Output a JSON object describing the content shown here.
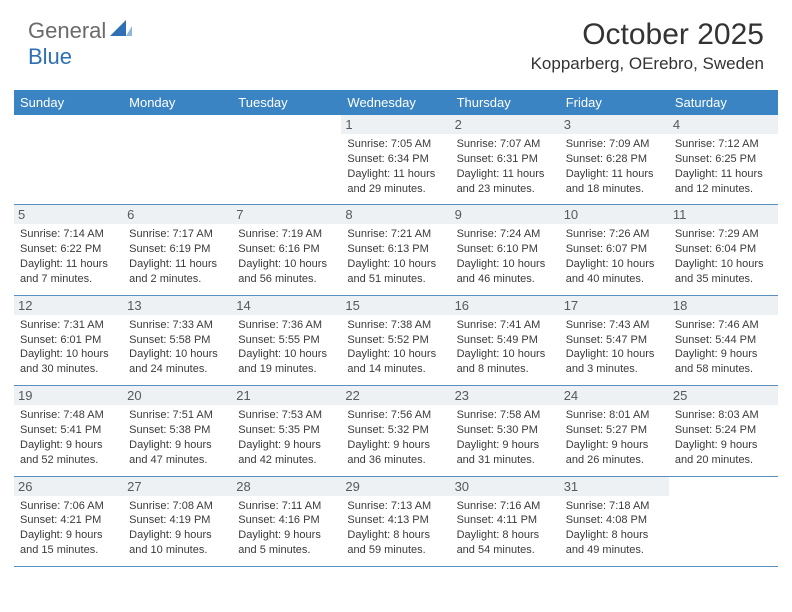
{
  "logo": {
    "part1": "General",
    "part2": "Blue"
  },
  "title": {
    "month": "October 2025",
    "location": "Kopparberg, OErebro, Sweden"
  },
  "colors": {
    "header_bg": "#3b84c4",
    "header_text": "#ffffff",
    "daynum_bg": "#eef1f3",
    "daynum_text": "#555a5e",
    "cell_text": "#3a3a3a",
    "rule": "#5a8fbf",
    "logo_gray": "#6a6a6a",
    "logo_blue": "#2f6fb3"
  },
  "day_labels": [
    "Sunday",
    "Monday",
    "Tuesday",
    "Wednesday",
    "Thursday",
    "Friday",
    "Saturday"
  ],
  "weeks": [
    [
      {
        "blank": true
      },
      {
        "blank": true
      },
      {
        "blank": true
      },
      {
        "n": "1",
        "sr": "7:05 AM",
        "ss": "6:34 PM",
        "dl": "11 hours and 29 minutes."
      },
      {
        "n": "2",
        "sr": "7:07 AM",
        "ss": "6:31 PM",
        "dl": "11 hours and 23 minutes."
      },
      {
        "n": "3",
        "sr": "7:09 AM",
        "ss": "6:28 PM",
        "dl": "11 hours and 18 minutes."
      },
      {
        "n": "4",
        "sr": "7:12 AM",
        "ss": "6:25 PM",
        "dl": "11 hours and 12 minutes."
      }
    ],
    [
      {
        "n": "5",
        "sr": "7:14 AM",
        "ss": "6:22 PM",
        "dl": "11 hours and 7 minutes."
      },
      {
        "n": "6",
        "sr": "7:17 AM",
        "ss": "6:19 PM",
        "dl": "11 hours and 2 minutes."
      },
      {
        "n": "7",
        "sr": "7:19 AM",
        "ss": "6:16 PM",
        "dl": "10 hours and 56 minutes."
      },
      {
        "n": "8",
        "sr": "7:21 AM",
        "ss": "6:13 PM",
        "dl": "10 hours and 51 minutes."
      },
      {
        "n": "9",
        "sr": "7:24 AM",
        "ss": "6:10 PM",
        "dl": "10 hours and 46 minutes."
      },
      {
        "n": "10",
        "sr": "7:26 AM",
        "ss": "6:07 PM",
        "dl": "10 hours and 40 minutes."
      },
      {
        "n": "11",
        "sr": "7:29 AM",
        "ss": "6:04 PM",
        "dl": "10 hours and 35 minutes."
      }
    ],
    [
      {
        "n": "12",
        "sr": "7:31 AM",
        "ss": "6:01 PM",
        "dl": "10 hours and 30 minutes."
      },
      {
        "n": "13",
        "sr": "7:33 AM",
        "ss": "5:58 PM",
        "dl": "10 hours and 24 minutes."
      },
      {
        "n": "14",
        "sr": "7:36 AM",
        "ss": "5:55 PM",
        "dl": "10 hours and 19 minutes."
      },
      {
        "n": "15",
        "sr": "7:38 AM",
        "ss": "5:52 PM",
        "dl": "10 hours and 14 minutes."
      },
      {
        "n": "16",
        "sr": "7:41 AM",
        "ss": "5:49 PM",
        "dl": "10 hours and 8 minutes."
      },
      {
        "n": "17",
        "sr": "7:43 AM",
        "ss": "5:47 PM",
        "dl": "10 hours and 3 minutes."
      },
      {
        "n": "18",
        "sr": "7:46 AM",
        "ss": "5:44 PM",
        "dl": "9 hours and 58 minutes."
      }
    ],
    [
      {
        "n": "19",
        "sr": "7:48 AM",
        "ss": "5:41 PM",
        "dl": "9 hours and 52 minutes."
      },
      {
        "n": "20",
        "sr": "7:51 AM",
        "ss": "5:38 PM",
        "dl": "9 hours and 47 minutes."
      },
      {
        "n": "21",
        "sr": "7:53 AM",
        "ss": "5:35 PM",
        "dl": "9 hours and 42 minutes."
      },
      {
        "n": "22",
        "sr": "7:56 AM",
        "ss": "5:32 PM",
        "dl": "9 hours and 36 minutes."
      },
      {
        "n": "23",
        "sr": "7:58 AM",
        "ss": "5:30 PM",
        "dl": "9 hours and 31 minutes."
      },
      {
        "n": "24",
        "sr": "8:01 AM",
        "ss": "5:27 PM",
        "dl": "9 hours and 26 minutes."
      },
      {
        "n": "25",
        "sr": "8:03 AM",
        "ss": "5:24 PM",
        "dl": "9 hours and 20 minutes."
      }
    ],
    [
      {
        "n": "26",
        "sr": "7:06 AM",
        "ss": "4:21 PM",
        "dl": "9 hours and 15 minutes."
      },
      {
        "n": "27",
        "sr": "7:08 AM",
        "ss": "4:19 PM",
        "dl": "9 hours and 10 minutes."
      },
      {
        "n": "28",
        "sr": "7:11 AM",
        "ss": "4:16 PM",
        "dl": "9 hours and 5 minutes."
      },
      {
        "n": "29",
        "sr": "7:13 AM",
        "ss": "4:13 PM",
        "dl": "8 hours and 59 minutes."
      },
      {
        "n": "30",
        "sr": "7:16 AM",
        "ss": "4:11 PM",
        "dl": "8 hours and 54 minutes."
      },
      {
        "n": "31",
        "sr": "7:18 AM",
        "ss": "4:08 PM",
        "dl": "8 hours and 49 minutes."
      },
      {
        "blank": true
      }
    ]
  ],
  "labels": {
    "sunrise": "Sunrise: ",
    "sunset": "Sunset: ",
    "daylight": "Daylight: "
  }
}
